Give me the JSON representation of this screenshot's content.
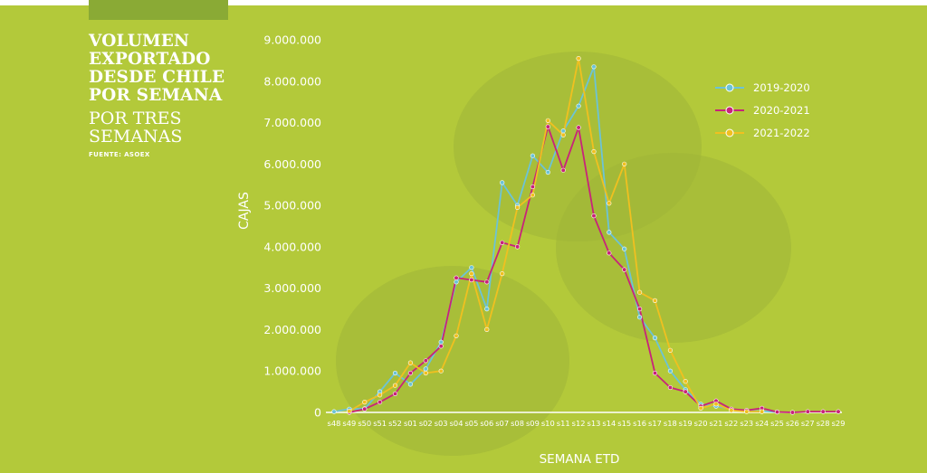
{
  "header": {
    "title_bold": "VOLUMEN\nEXPORTADO\nDESDE CHILE\nPOR SEMANA",
    "title_light": "POR TRES\nSEMANAS",
    "source": "FUENTE: ASOEX"
  },
  "colors": {
    "background": "#b3c93a",
    "bubble": "#9fb438",
    "axis": "#ffffff",
    "text": "#ffffff"
  },
  "chart_data": {
    "type": "line",
    "xlabel": "SEMANA ETD",
    "ylabel": "CAJAS",
    "ylim": [
      0,
      9000000
    ],
    "y_ticks": [
      "0",
      "1.000.000",
      "2.000.000",
      "3.000.000",
      "4.000.000",
      "5.000.000",
      "6.000.000",
      "7.000.000",
      "8.000.000",
      "9.000.000"
    ],
    "legend_position": "top-right",
    "categories": [
      "s48",
      "s49",
      "s50",
      "s51",
      "s52",
      "s01",
      "s02",
      "s03",
      "s04",
      "s05",
      "s06",
      "s07",
      "s08",
      "s09",
      "s10",
      "s11",
      "s12",
      "s13",
      "s14",
      "s15",
      "s16",
      "s17",
      "s18",
      "s19",
      "s20",
      "s21",
      "s22",
      "s23",
      "s24",
      "s25",
      "s26",
      "s27",
      "s28",
      "s29"
    ],
    "series": [
      {
        "name": "2019-2020",
        "color": "#6cc3d6",
        "values": [
          20000,
          80000,
          90000,
          500000,
          950000,
          680000,
          1050000,
          1700000,
          3150000,
          3500000,
          2500000,
          5550000,
          5000000,
          6200000,
          5800000,
          6800000,
          7400000,
          8350000,
          4350000,
          3950000,
          2300000,
          1800000,
          1000000,
          550000,
          200000,
          150000,
          80000,
          30000,
          30000,
          10000,
          null,
          null,
          null,
          null
        ]
      },
      {
        "name": "2020-2021",
        "color": "#c8237a",
        "values": [
          null,
          0,
          80000,
          250000,
          450000,
          950000,
          1250000,
          1600000,
          3250000,
          3200000,
          3150000,
          4100000,
          4000000,
          5450000,
          6900000,
          5850000,
          6880000,
          4750000,
          3850000,
          3450000,
          2500000,
          950000,
          600000,
          500000,
          150000,
          280000,
          80000,
          50000,
          100000,
          10000,
          0,
          20000,
          20000,
          20000
        ]
      },
      {
        "name": "2021-2022",
        "color": "#f0c020",
        "values": [
          null,
          30000,
          250000,
          420000,
          650000,
          1200000,
          950000,
          1000000,
          1850000,
          3350000,
          2000000,
          3350000,
          4950000,
          5250000,
          7050000,
          6700000,
          8550000,
          6300000,
          5050000,
          6000000,
          2900000,
          2700000,
          1500000,
          750000,
          100000,
          200000,
          50000,
          20000,
          20000,
          null,
          null,
          null,
          null,
          null
        ]
      }
    ]
  }
}
